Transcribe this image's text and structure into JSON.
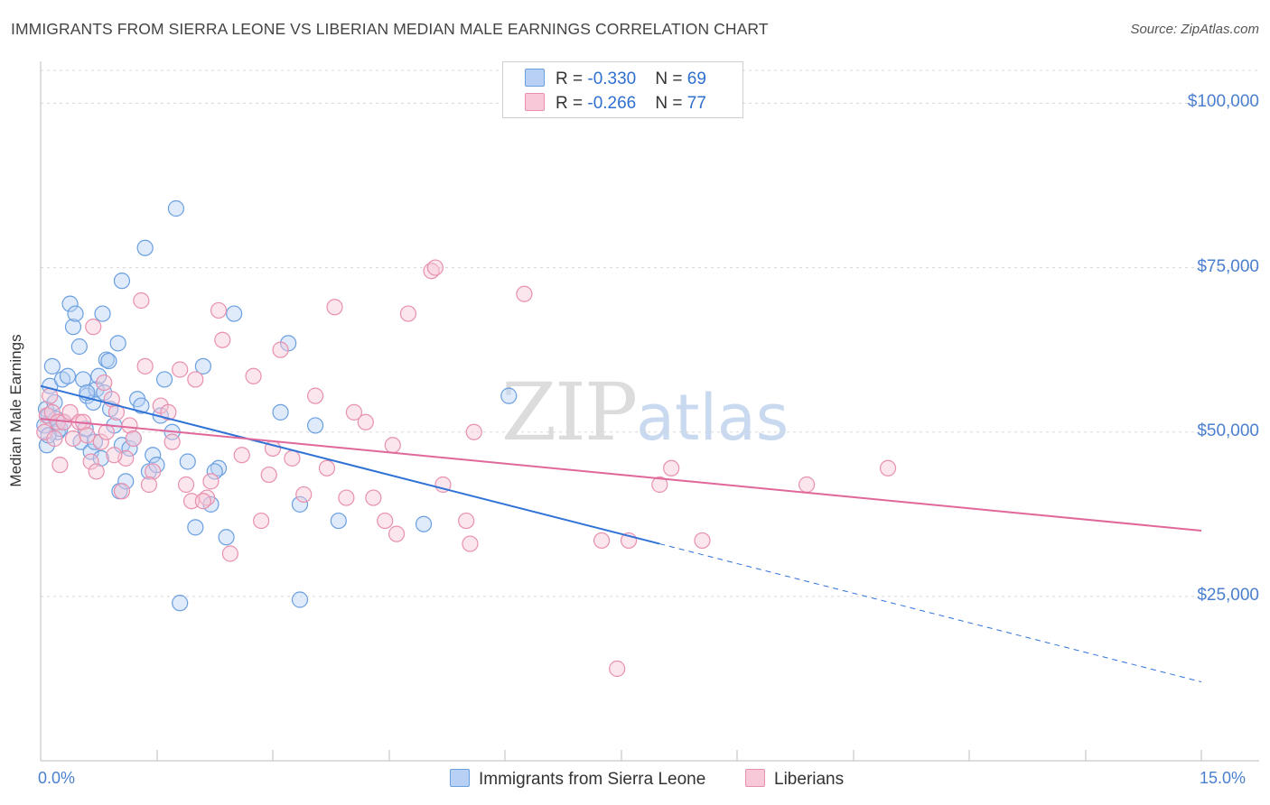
{
  "chart_data": {
    "type": "scatter",
    "title": "IMMIGRANTS FROM SIERRA LEONE VS LIBERIAN MEDIAN MALE EARNINGS CORRELATION CHART",
    "source": "Source: ZipAtlas.com",
    "ylabel": "Median Male Earnings",
    "xlim": [
      0,
      15
    ],
    "ylim": [
      0,
      105000
    ],
    "y_ticks": [
      {
        "value": 25000,
        "label": "$25,000"
      },
      {
        "value": 50000,
        "label": "$50,000"
      },
      {
        "value": 75000,
        "label": "$75,000"
      },
      {
        "value": 100000,
        "label": "$100,000"
      }
    ],
    "x_tick_labels": {
      "min": "0.0%",
      "max": "15.0%"
    },
    "watermark": {
      "zip": "ZIP",
      "atlas": "atlas"
    },
    "legend": {
      "rows": [
        {
          "r_label": "R = ",
          "r_value": "-0.330",
          "n_label": "N = ",
          "n_value": "69"
        },
        {
          "r_label": "R = ",
          "r_value": "-0.266",
          "n_label": "N = ",
          "n_value": "77"
        }
      ]
    },
    "series": [
      {
        "name": "Immigrants from Sierra Leone",
        "color": "#6a9fe0",
        "fill": "#b7d0f3",
        "trend": {
          "x0": 0.0,
          "y0": 57000,
          "x1": 8.0,
          "y1": 33000,
          "dash_x1": 15.0,
          "dash_y1": 12000,
          "color": "#2f72d6"
        },
        "points": [
          [
            0.05,
            51000
          ],
          [
            0.07,
            53500
          ],
          [
            0.1,
            52500
          ],
          [
            0.12,
            57000
          ],
          [
            0.15,
            60000
          ],
          [
            0.18,
            54500
          ],
          [
            0.2,
            52000
          ],
          [
            0.22,
            50000
          ],
          [
            0.25,
            50500
          ],
          [
            0.28,
            58000
          ],
          [
            0.3,
            51500
          ],
          [
            0.35,
            58500
          ],
          [
            0.38,
            69500
          ],
          [
            0.42,
            66000
          ],
          [
            0.45,
            68000
          ],
          [
            0.5,
            63000
          ],
          [
            0.52,
            48500
          ],
          [
            0.55,
            58000
          ],
          [
            0.58,
            50500
          ],
          [
            0.6,
            55500
          ],
          [
            0.65,
            47000
          ],
          [
            0.68,
            54500
          ],
          [
            0.7,
            48500
          ],
          [
            0.72,
            56500
          ],
          [
            0.75,
            58500
          ],
          [
            0.78,
            46000
          ],
          [
            0.8,
            68000
          ],
          [
            0.82,
            56000
          ],
          [
            0.85,
            61000
          ],
          [
            0.88,
            60800
          ],
          [
            0.9,
            53500
          ],
          [
            0.95,
            51000
          ],
          [
            1.0,
            63500
          ],
          [
            1.02,
            41000
          ],
          [
            1.05,
            48000
          ],
          [
            1.1,
            42500
          ],
          [
            1.15,
            47500
          ],
          [
            1.2,
            49000
          ],
          [
            1.25,
            55000
          ],
          [
            1.3,
            54000
          ],
          [
            1.35,
            78000
          ],
          [
            1.4,
            44000
          ],
          [
            1.45,
            46500
          ],
          [
            1.5,
            45000
          ],
          [
            1.55,
            52500
          ],
          [
            1.6,
            58000
          ],
          [
            1.7,
            50000
          ],
          [
            1.75,
            84000
          ],
          [
            1.8,
            24000
          ],
          [
            1.9,
            45500
          ],
          [
            2.0,
            35500
          ],
          [
            2.1,
            60000
          ],
          [
            2.2,
            39000
          ],
          [
            2.3,
            44500
          ],
          [
            2.4,
            34000
          ],
          [
            2.5,
            68000
          ],
          [
            3.1,
            53000
          ],
          [
            3.2,
            63500
          ],
          [
            3.35,
            39000
          ],
          [
            3.55,
            51000
          ],
          [
            3.35,
            24500
          ],
          [
            3.85,
            36500
          ],
          [
            4.95,
            36000
          ],
          [
            6.05,
            55500
          ],
          [
            0.08,
            48000
          ],
          [
            1.05,
            73000
          ],
          [
            0.1,
            49500
          ],
          [
            2.25,
            44000
          ],
          [
            0.6,
            56000
          ]
        ]
      },
      {
        "name": "Liberians",
        "color": "#e890ad",
        "fill": "#f7c8d8",
        "trend": {
          "x0": 0.0,
          "y0": 52000,
          "x1": 15.0,
          "y1": 35000,
          "color": "#e0679a"
        },
        "points": [
          [
            0.05,
            50000
          ],
          [
            0.08,
            52500
          ],
          [
            0.12,
            55500
          ],
          [
            0.15,
            53000
          ],
          [
            0.18,
            49000
          ],
          [
            0.22,
            51500
          ],
          [
            0.25,
            45000
          ],
          [
            0.3,
            51500
          ],
          [
            0.38,
            53000
          ],
          [
            0.42,
            49000
          ],
          [
            0.5,
            51500
          ],
          [
            0.55,
            51500
          ],
          [
            0.6,
            49500
          ],
          [
            0.65,
            45500
          ],
          [
            0.68,
            66000
          ],
          [
            0.72,
            44000
          ],
          [
            0.78,
            48500
          ],
          [
            0.82,
            57500
          ],
          [
            0.85,
            50000
          ],
          [
            0.92,
            55000
          ],
          [
            0.98,
            53000
          ],
          [
            1.05,
            41000
          ],
          [
            1.1,
            46000
          ],
          [
            1.15,
            51000
          ],
          [
            1.2,
            49000
          ],
          [
            1.3,
            70000
          ],
          [
            1.35,
            60000
          ],
          [
            1.45,
            44000
          ],
          [
            1.55,
            54000
          ],
          [
            1.65,
            53000
          ],
          [
            1.7,
            48500
          ],
          [
            1.8,
            59500
          ],
          [
            1.88,
            42000
          ],
          [
            1.95,
            39500
          ],
          [
            2.0,
            58000
          ],
          [
            2.15,
            40000
          ],
          [
            2.2,
            42500
          ],
          [
            2.3,
            68500
          ],
          [
            2.35,
            64000
          ],
          [
            2.45,
            31500
          ],
          [
            2.6,
            46500
          ],
          [
            2.75,
            58500
          ],
          [
            2.85,
            36500
          ],
          [
            2.95,
            43500
          ],
          [
            3.0,
            47500
          ],
          [
            3.1,
            62500
          ],
          [
            3.25,
            46000
          ],
          [
            3.4,
            40500
          ],
          [
            3.55,
            55500
          ],
          [
            3.7,
            44500
          ],
          [
            3.8,
            69000
          ],
          [
            3.95,
            40000
          ],
          [
            4.05,
            53000
          ],
          [
            4.2,
            51500
          ],
          [
            4.3,
            40000
          ],
          [
            4.45,
            36500
          ],
          [
            4.55,
            48000
          ],
          [
            4.6,
            34500
          ],
          [
            4.75,
            68000
          ],
          [
            5.05,
            74500
          ],
          [
            5.1,
            75000
          ],
          [
            5.2,
            42000
          ],
          [
            5.5,
            36500
          ],
          [
            5.55,
            33000
          ],
          [
            5.6,
            50000
          ],
          [
            6.25,
            71000
          ],
          [
            7.25,
            33500
          ],
          [
            7.45,
            14000
          ],
          [
            7.6,
            33500
          ],
          [
            8.0,
            42000
          ],
          [
            8.15,
            44500
          ],
          [
            8.55,
            33500
          ],
          [
            9.9,
            42000
          ],
          [
            10.95,
            44500
          ],
          [
            1.4,
            42000
          ],
          [
            2.1,
            39500
          ],
          [
            0.95,
            46500
          ]
        ]
      }
    ]
  }
}
